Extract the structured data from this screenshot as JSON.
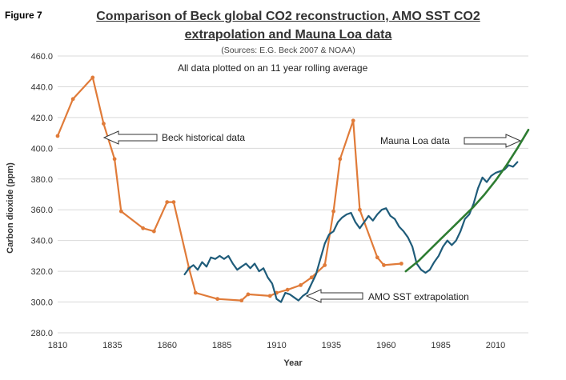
{
  "figure_label": "Figure 7",
  "chart_data": {
    "type": "line",
    "title_line1": "Comparison of Beck global CO2 reconstruction, AMO SST CO2",
    "title_line2": "extrapolation and Mauna Loa data",
    "subtitle": "(Sources: E.G. Beck  2007 & NOAA)",
    "note": "All data plotted on an 11 year rolling average",
    "xlabel": "Year",
    "ylabel": "Carbon dioxide (ppm)",
    "xlim": [
      1810,
      2025
    ],
    "ylim": [
      280,
      460
    ],
    "x_ticks": [
      1810,
      1835,
      1860,
      1885,
      1910,
      1935,
      1960,
      1985,
      2010
    ],
    "y_ticks": [
      "280.0",
      "300.0",
      "320.0",
      "340.0",
      "360.0",
      "380.0",
      "400.0",
      "420.0",
      "440.0",
      "460.0"
    ],
    "grid": "horizontal",
    "annotations": [
      "Beck historical data",
      "Mauna Loa data",
      "AMO SST extrapolation"
    ],
    "colors": {
      "beck": "#E07B39",
      "amo": "#1F5C7A",
      "mauna_loa": "#2E7D32"
    },
    "series": [
      {
        "key": "beck",
        "markers": true,
        "x": [
          1810,
          1817,
          1826,
          1831,
          1836,
          1839,
          1849,
          1854,
          1860,
          1863,
          1870,
          1873,
          1883,
          1894,
          1897,
          1907,
          1910,
          1915,
          1921,
          1926,
          1932,
          1936,
          1939,
          1945,
          1948,
          1956,
          1959,
          1967
        ],
        "y": [
          408,
          432,
          446,
          416,
          393,
          359,
          348,
          346,
          365,
          365,
          322,
          306,
          302,
          301,
          305,
          304,
          306,
          308,
          311,
          316,
          324,
          359,
          393,
          418,
          360,
          329,
          324,
          325
        ]
      },
      {
        "key": "amo",
        "markers": false,
        "x": [
          1868,
          1870,
          1872,
          1874,
          1876,
          1878,
          1880,
          1882,
          1884,
          1886,
          1888,
          1890,
          1892,
          1894,
          1896,
          1898,
          1900,
          1902,
          1904,
          1906,
          1908,
          1910,
          1912,
          1914,
          1916,
          1918,
          1920,
          1922,
          1924,
          1926,
          1928,
          1930,
          1932,
          1934,
          1936,
          1938,
          1940,
          1942,
          1944,
          1946,
          1948,
          1950,
          1952,
          1954,
          1956,
          1958,
          1960,
          1962,
          1964,
          1966,
          1968,
          1970,
          1972,
          1974,
          1976,
          1978,
          1980,
          1982,
          1984,
          1986,
          1988,
          1990,
          1992,
          1994,
          1996,
          1998,
          2000,
          2002,
          2004,
          2006,
          2008,
          2010,
          2012,
          2014,
          2016,
          2018,
          2020
        ],
        "y": [
          318,
          322,
          324,
          321,
          326,
          323,
          329,
          328,
          330,
          328,
          330,
          325,
          321,
          323,
          325,
          322,
          325,
          320,
          322,
          316,
          312,
          302,
          300,
          306,
          305,
          303,
          301,
          304,
          306,
          312,
          318,
          328,
          338,
          344,
          346,
          352,
          355,
          357,
          358,
          352,
          348,
          352,
          356,
          353,
          357,
          360,
          361,
          356,
          354,
          349,
          346,
          342,
          336,
          325,
          321,
          319,
          321,
          326,
          330,
          336,
          340,
          337,
          340,
          346,
          354,
          357,
          364,
          374,
          381,
          378,
          382,
          384,
          385,
          386,
          389,
          388,
          391
        ]
      },
      {
        "key": "mauna_loa",
        "markers": false,
        "x": [
          1969,
          1975,
          1980,
          1985,
          1990,
          1995,
          2000,
          2005,
          2010,
          2015,
          2020,
          2025
        ],
        "y": [
          320,
          327,
          334,
          341,
          348,
          355,
          362,
          370,
          379,
          389,
          400,
          412
        ]
      }
    ]
  }
}
